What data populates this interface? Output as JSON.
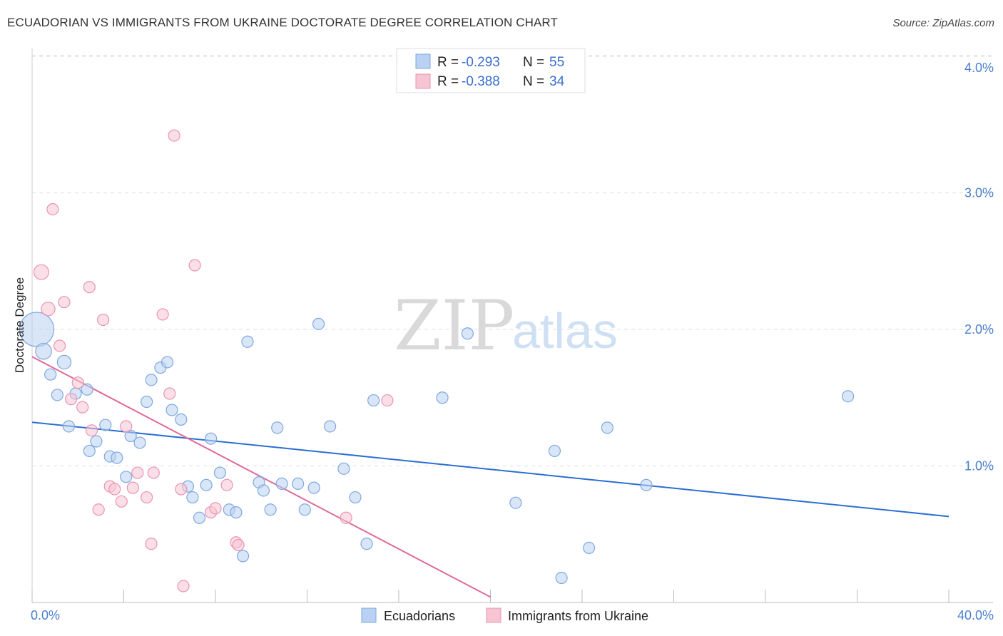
{
  "title": "ECUADORIAN VS IMMIGRANTS FROM UKRAINE DOCTORATE DEGREE CORRELATION CHART",
  "source": "Source: ZipAtlas.com",
  "watermark": {
    "zip": "ZIP",
    "atlas": "atlas"
  },
  "colors": {
    "blue_fill": "#b9d1f2",
    "blue_stroke": "#7ea8df",
    "blue_line": "#2b6fd1",
    "pink_fill": "#f7c4d4",
    "pink_stroke": "#ea93b2",
    "pink_line": "#e06a97",
    "grid": "#dddddd",
    "axis_text": "#4a7fcf"
  },
  "legend": {
    "r_label": "R =",
    "n_label": "N =",
    "entries": [
      {
        "r": "-0.293",
        "n": "55",
        "color": "#b9d1f2",
        "stroke": "#7ea8df"
      },
      {
        "r": "-0.388",
        "n": "34",
        "color": "#f7c4d4",
        "stroke": "#ea93b2"
      }
    ]
  },
  "bottom_legend": [
    "Ecuadorians",
    "Immigrants from Ukraine"
  ],
  "chart_data": {
    "type": "scatter",
    "title": "ECUADORIAN VS IMMIGRANTS FROM UKRAINE DOCTORATE DEGREE CORRELATION CHART",
    "xlabel": "",
    "ylabel": "Doctorate Degree",
    "xlim": [
      0,
      40
    ],
    "ylim": [
      0,
      4.1
    ],
    "x_tick_labels": [
      "0.0%",
      "40.0%"
    ],
    "y_ticks": [
      1.0,
      2.0,
      3.0,
      4.0
    ],
    "y_tick_labels": [
      "1.0%",
      "2.0%",
      "3.0%",
      "4.0%"
    ],
    "x_minor_ticks": [
      0,
      4,
      8,
      12,
      16,
      20,
      24,
      28,
      32,
      36,
      40
    ],
    "series": [
      {
        "name": "Ecuadorians",
        "color": "#b9d1f2",
        "trend": {
          "x": [
            0,
            40
          ],
          "y": [
            1.32,
            0.63
          ]
        },
        "points": [
          [
            0.2,
            2.0,
            3
          ],
          [
            0.5,
            1.84,
            1.4
          ],
          [
            0.8,
            1.67,
            1
          ],
          [
            1.1,
            1.52,
            1
          ],
          [
            1.4,
            1.76,
            1.2
          ],
          [
            1.6,
            1.29,
            1
          ],
          [
            1.9,
            1.53,
            1
          ],
          [
            2.4,
            1.56,
            1
          ],
          [
            2.5,
            1.11,
            1
          ],
          [
            2.8,
            1.18,
            1
          ],
          [
            3.2,
            1.3,
            1
          ],
          [
            3.4,
            1.07,
            1
          ],
          [
            3.7,
            1.06,
            1
          ],
          [
            4.1,
            0.92,
            1
          ],
          [
            4.3,
            1.22,
            1
          ],
          [
            4.7,
            1.17,
            1
          ],
          [
            5.0,
            1.47,
            1
          ],
          [
            5.2,
            1.63,
            1
          ],
          [
            5.6,
            1.72,
            1
          ],
          [
            5.9,
            1.76,
            1
          ],
          [
            6.1,
            1.41,
            1
          ],
          [
            6.5,
            1.34,
            1
          ],
          [
            6.8,
            0.85,
            1
          ],
          [
            7.0,
            0.77,
            1
          ],
          [
            7.3,
            0.62,
            1
          ],
          [
            7.6,
            0.86,
            1
          ],
          [
            7.8,
            1.2,
            1
          ],
          [
            8.2,
            0.95,
            1
          ],
          [
            8.6,
            0.68,
            1
          ],
          [
            8.9,
            0.66,
            1
          ],
          [
            9.2,
            0.34,
            1
          ],
          [
            9.4,
            1.91,
            1
          ],
          [
            9.9,
            0.88,
            1
          ],
          [
            10.1,
            0.82,
            1
          ],
          [
            10.4,
            0.68,
            1
          ],
          [
            10.7,
            1.28,
            1
          ],
          [
            10.9,
            0.87,
            1
          ],
          [
            11.6,
            0.87,
            1
          ],
          [
            11.9,
            0.68,
            1
          ],
          [
            12.3,
            0.84,
            1
          ],
          [
            12.5,
            2.04,
            1
          ],
          [
            13.0,
            1.29,
            1
          ],
          [
            13.6,
            0.98,
            1
          ],
          [
            14.1,
            0.77,
            1
          ],
          [
            14.6,
            0.43,
            1
          ],
          [
            14.9,
            1.48,
            1
          ],
          [
            17.9,
            1.5,
            1
          ],
          [
            19.0,
            1.97,
            1
          ],
          [
            21.1,
            0.73,
            1
          ],
          [
            22.8,
            1.11,
            1
          ],
          [
            23.1,
            0.18,
            1
          ],
          [
            24.3,
            0.4,
            1
          ],
          [
            25.1,
            1.28,
            1
          ],
          [
            26.8,
            0.86,
            1
          ],
          [
            35.6,
            1.51,
            1
          ]
        ]
      },
      {
        "name": "Immigrants from Ukraine",
        "color": "#f7c4d4",
        "trend": {
          "x": [
            0,
            20
          ],
          "y": [
            1.8,
            0.04
          ]
        },
        "points": [
          [
            0.4,
            2.42,
            1.3
          ],
          [
            0.7,
            2.15,
            1.2
          ],
          [
            0.9,
            2.88,
            1
          ],
          [
            1.2,
            1.88,
            1
          ],
          [
            1.4,
            2.2,
            1
          ],
          [
            1.7,
            1.49,
            1
          ],
          [
            2.0,
            1.61,
            1
          ],
          [
            2.2,
            1.43,
            1
          ],
          [
            2.5,
            2.31,
            1
          ],
          [
            2.6,
            1.26,
            1
          ],
          [
            2.9,
            0.68,
            1
          ],
          [
            3.1,
            2.07,
            1
          ],
          [
            3.4,
            0.85,
            1
          ],
          [
            3.6,
            0.83,
            1
          ],
          [
            3.9,
            0.74,
            1
          ],
          [
            4.1,
            1.29,
            1
          ],
          [
            4.4,
            0.84,
            1
          ],
          [
            4.6,
            0.95,
            1
          ],
          [
            5.0,
            0.77,
            1
          ],
          [
            5.2,
            0.43,
            1
          ],
          [
            5.3,
            0.95,
            1
          ],
          [
            5.7,
            2.11,
            1
          ],
          [
            6.0,
            1.53,
            1
          ],
          [
            6.2,
            3.42,
            1
          ],
          [
            6.5,
            0.83,
            1
          ],
          [
            6.6,
            0.12,
            1
          ],
          [
            7.1,
            2.47,
            1
          ],
          [
            7.8,
            0.66,
            1
          ],
          [
            8.0,
            0.69,
            1
          ],
          [
            8.5,
            0.86,
            1
          ],
          [
            8.9,
            0.44,
            1
          ],
          [
            9.0,
            0.42,
            1
          ],
          [
            13.7,
            0.62,
            1
          ],
          [
            15.5,
            1.48,
            1
          ]
        ]
      }
    ]
  }
}
